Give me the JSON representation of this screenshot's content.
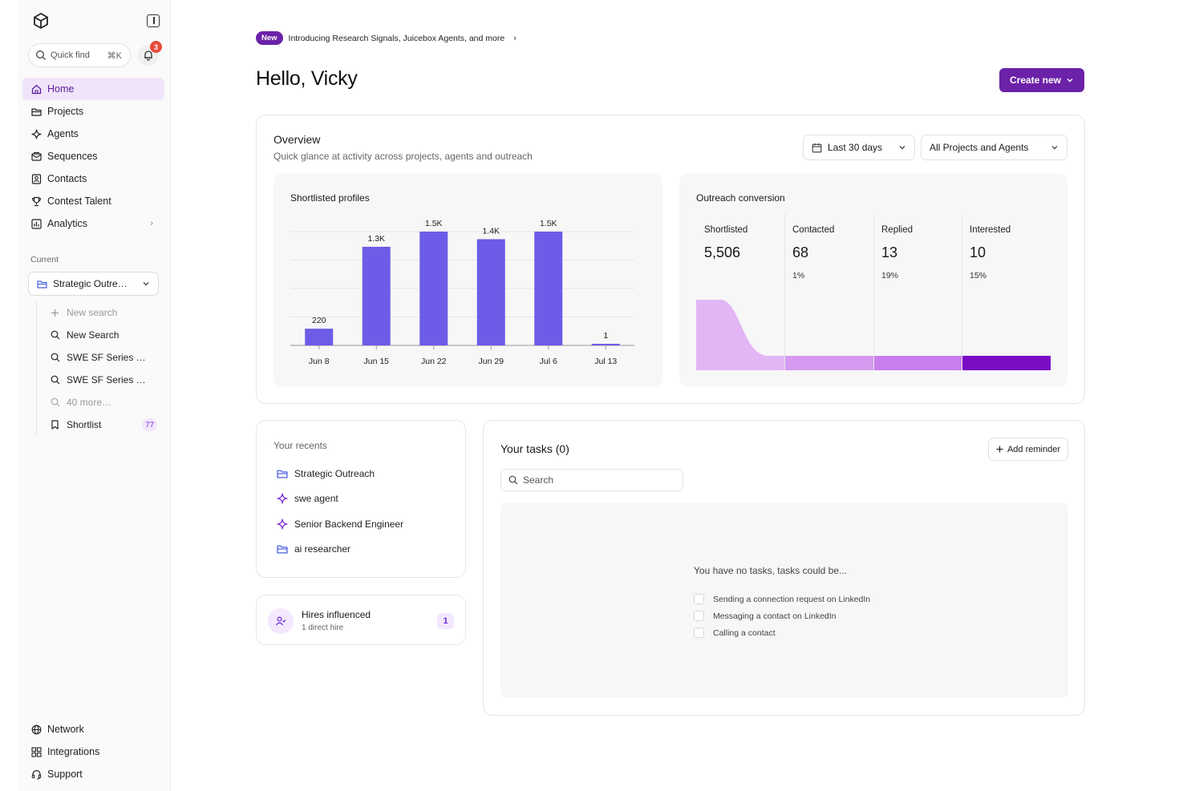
{
  "sidebar": {
    "quickfind": {
      "label": "Quick find",
      "shortcut": "⌘K"
    },
    "notifications": {
      "count": "3"
    },
    "nav": [
      {
        "label": "Home",
        "icon": "home-icon",
        "active": true
      },
      {
        "label": "Projects",
        "icon": "folder-icon"
      },
      {
        "label": "Agents",
        "icon": "sparkle-icon"
      },
      {
        "label": "Sequences",
        "icon": "mail-icon"
      },
      {
        "label": "Contacts",
        "icon": "contact-icon"
      },
      {
        "label": "Contest Talent",
        "icon": "trophy-icon"
      },
      {
        "label": "Analytics",
        "icon": "chart-icon"
      }
    ],
    "current_label": "Current",
    "current_project": "Strategic Outre…",
    "sub_items": [
      {
        "label": "New search",
        "icon": "plus-icon",
        "muted": true
      },
      {
        "label": "New Search",
        "icon": "search-icon"
      },
      {
        "label": "SWE SF Series …",
        "icon": "search-icon"
      },
      {
        "label": "SWE SF Series …",
        "icon": "search-icon"
      },
      {
        "label": "40 more…",
        "icon": "search-icon",
        "muted": true
      },
      {
        "label": "Shortlist",
        "icon": "bookmark-icon",
        "count": "77"
      }
    ],
    "bottom_nav": [
      {
        "label": "Network",
        "icon": "globe-icon"
      },
      {
        "label": "Integrations",
        "icon": "grid-icon"
      },
      {
        "label": "Support",
        "icon": "headset-icon"
      }
    ]
  },
  "announcement": {
    "badge": "New",
    "text": "Introducing Research Signals, Juicebox Agents, and more"
  },
  "greeting": "Hello, Vicky",
  "create_button": "Create new",
  "overview": {
    "title": "Overview",
    "subtitle": "Quick glance at activity across projects, agents and outreach",
    "range": "Last 30 days",
    "scope": "All Projects and Agents"
  },
  "colors": {
    "accent": "#6b21a8",
    "bar": "#6c5ce7",
    "funnel_light": "#e2b6f5",
    "funnel_mid": "#d59af0",
    "funnel_strong": "#c97fee",
    "funnel_dark": "#7a0cc4"
  },
  "chart_data": [
    {
      "type": "bar",
      "title": "Shortlisted profiles",
      "categories": [
        "Jun 8",
        "Jun 15",
        "Jun 22",
        "Jun 29",
        "Jul 6",
        "Jul 13"
      ],
      "values": [
        220,
        1300,
        1500,
        1400,
        1500,
        1
      ],
      "value_labels": [
        "220",
        "1.3K",
        "1.5K",
        "1.4K",
        "1.5K",
        "1"
      ],
      "ylim": [
        0,
        1500
      ],
      "grid": true
    },
    {
      "type": "area",
      "title": "Outreach conversion",
      "stages": [
        {
          "name": "Shortlisted",
          "value": 5506,
          "display": "5,506",
          "pct": ""
        },
        {
          "name": "Contacted",
          "value": 68,
          "display": "68",
          "pct": "1%"
        },
        {
          "name": "Replied",
          "value": 13,
          "display": "13",
          "pct": "19%"
        },
        {
          "name": "Interested",
          "value": 10,
          "display": "10",
          "pct": "15%"
        }
      ]
    }
  ],
  "recents": {
    "title": "Your recents",
    "items": [
      {
        "label": "Strategic Outreach",
        "icon": "folder-icon"
      },
      {
        "label": "swe agent",
        "icon": "sparkle-icon"
      },
      {
        "label": "Senior Backend Engineer",
        "icon": "sparkle-icon"
      },
      {
        "label": "ai researcher",
        "icon": "folder-icon"
      }
    ]
  },
  "hires": {
    "title": "Hires influenced",
    "subtitle": "1 direct hire",
    "count": "1"
  },
  "tasks": {
    "title": "Your tasks (0)",
    "add_label": "Add reminder",
    "search_placeholder": "Search",
    "empty_title": "You have no tasks, tasks could be...",
    "suggestions": [
      "Sending a connection request on LinkedIn",
      "Messaging a contact on LinkedIn",
      "Calling a contact"
    ]
  }
}
